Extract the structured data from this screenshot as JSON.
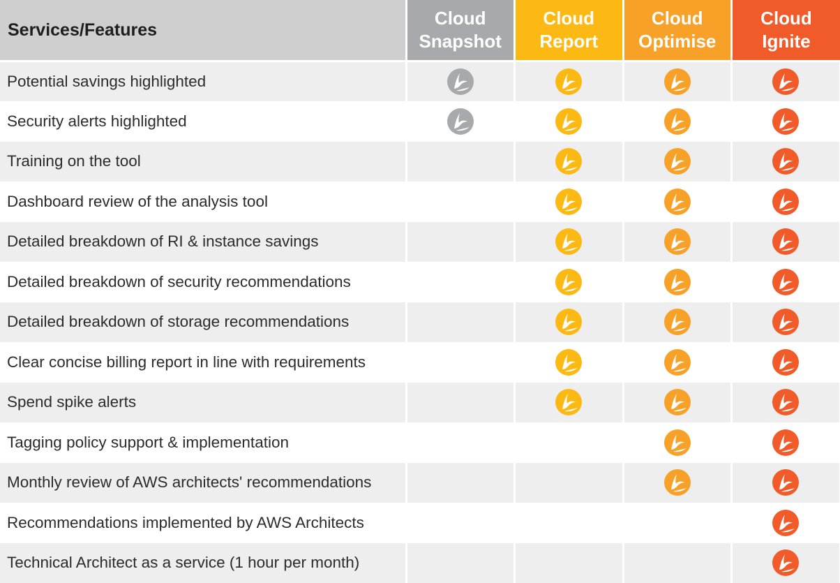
{
  "header": {
    "features_label": "Services/Features",
    "plans": [
      {
        "line1": "Cloud",
        "line2": "Snapshot",
        "color": "#a7a9ac"
      },
      {
        "line1": "Cloud",
        "line2": "Report",
        "color": "#fdb913"
      },
      {
        "line1": "Cloud",
        "line2": "Optimise",
        "color": "#f7a128"
      },
      {
        "line1": "Cloud",
        "line2": "Ignite",
        "color": "#f15a29"
      }
    ]
  },
  "icon_colors": [
    "#a7a9ac",
    "#fdb913",
    "#f7a128",
    "#f15a29"
  ],
  "icon_name": "brand-logo-icon",
  "rows": [
    {
      "feature": "Potential savings highlighted",
      "included": [
        true,
        true,
        true,
        true
      ]
    },
    {
      "feature": "Security alerts highlighted",
      "included": [
        true,
        true,
        true,
        true
      ]
    },
    {
      "feature": "Training on the tool",
      "included": [
        false,
        true,
        true,
        true
      ]
    },
    {
      "feature": "Dashboard review of the analysis tool",
      "included": [
        false,
        true,
        true,
        true
      ]
    },
    {
      "feature": "Detailed breakdown of RI & instance savings",
      "included": [
        false,
        true,
        true,
        true
      ]
    },
    {
      "feature": "Detailed breakdown of security recommendations",
      "included": [
        false,
        true,
        true,
        true
      ]
    },
    {
      "feature": "Detailed breakdown of storage recommendations",
      "included": [
        false,
        true,
        true,
        true
      ]
    },
    {
      "feature": "Clear concise billing report in line with requirements",
      "included": [
        false,
        true,
        true,
        true
      ]
    },
    {
      "feature": "Spend spike alerts",
      "included": [
        false,
        true,
        true,
        true
      ]
    },
    {
      "feature": "Tagging policy support & implementation",
      "included": [
        false,
        false,
        true,
        true
      ]
    },
    {
      "feature": "Monthly review of AWS architects' recommendations",
      "included": [
        false,
        false,
        true,
        true
      ]
    },
    {
      "feature": "Recommendations implemented by AWS Architects",
      "included": [
        false,
        false,
        false,
        true
      ]
    },
    {
      "feature": "Technical Architect as a service (1 hour per month)",
      "included": [
        false,
        false,
        false,
        true
      ]
    }
  ]
}
